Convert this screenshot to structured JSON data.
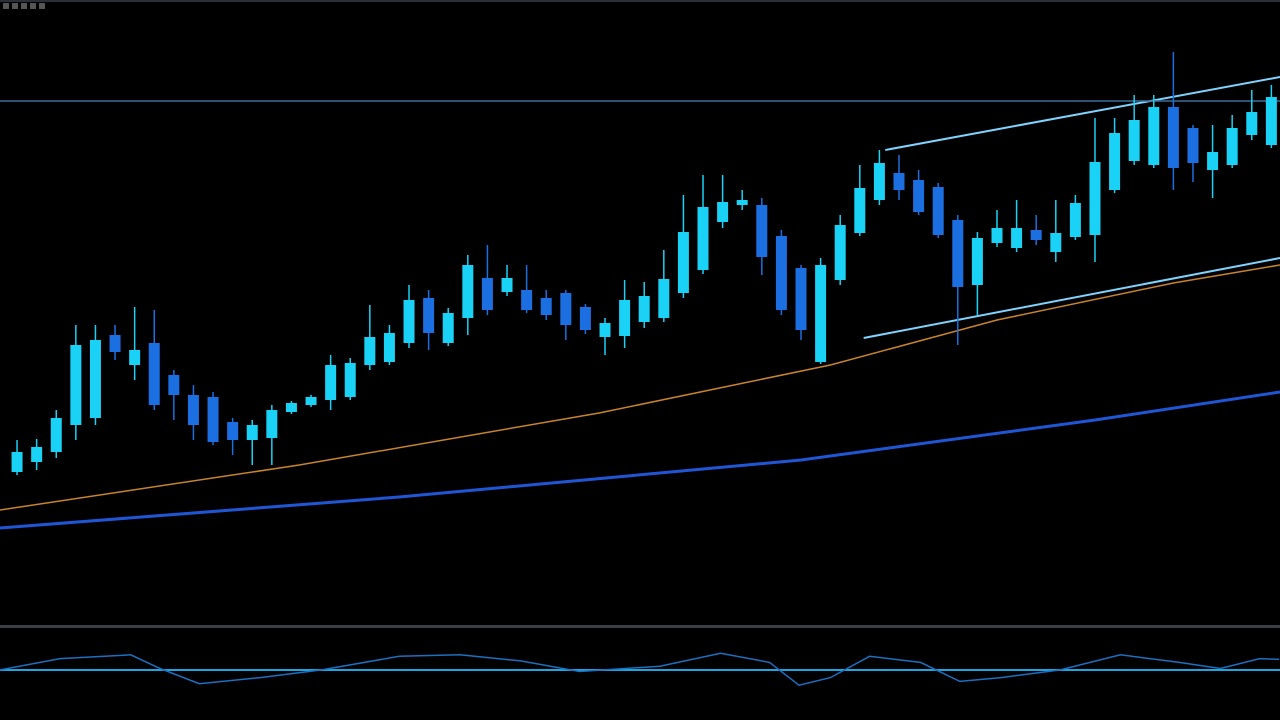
{
  "chart_data": {
    "type": "candlestick",
    "up_color": "#1ad2f5",
    "down_color": "#1c6fe0",
    "xlim": [
      -0.87,
      64.44
    ],
    "ylim": [
      0,
      625
    ],
    "open": [
      153,
      163,
      173,
      200,
      207,
      290,
      260,
      282,
      250,
      230,
      228,
      203,
      185,
      187,
      213,
      220,
      225,
      228,
      260,
      263,
      282,
      327,
      282,
      307,
      347,
      333,
      335,
      327,
      332,
      318,
      288,
      289,
      303,
      307,
      332,
      355,
      403,
      420,
      420,
      389,
      357,
      263,
      345,
      392,
      425,
      452,
      445,
      438,
      405,
      340,
      382,
      377,
      395,
      373,
      388,
      390,
      435,
      464,
      460,
      518,
      497,
      455,
      460,
      490,
      480
    ],
    "high": [
      185,
      186,
      215,
      300,
      300,
      300,
      318,
      315,
      255,
      240,
      233,
      207,
      205,
      220,
      224,
      230,
      270,
      267,
      320,
      300,
      340,
      335,
      317,
      370,
      380,
      360,
      360,
      335,
      335,
      321,
      307,
      345,
      343,
      375,
      430,
      450,
      450,
      435,
      427,
      395,
      360,
      367,
      410,
      460,
      475,
      470,
      455,
      442,
      410,
      393,
      415,
      425,
      410,
      425,
      430,
      507,
      507,
      530,
      530,
      573,
      500,
      500,
      510,
      535,
      540
    ],
    "low": [
      150,
      155,
      167,
      185,
      200,
      265,
      245,
      215,
      205,
      185,
      180,
      170,
      160,
      160,
      211,
      218,
      215,
      225,
      255,
      260,
      277,
      275,
      279,
      290,
      310,
      329,
      312,
      305,
      285,
      291,
      270,
      277,
      297,
      303,
      327,
      351,
      397,
      415,
      350,
      310,
      285,
      261,
      340,
      389,
      420,
      425,
      410,
      387,
      280,
      310,
      378,
      373,
      380,
      363,
      385,
      363,
      432,
      460,
      457,
      435,
      443,
      427,
      457,
      485,
      477
    ],
    "close": [
      173,
      178,
      207,
      280,
      285,
      273,
      275,
      220,
      230,
      200,
      183,
      185,
      200,
      215,
      222,
      228,
      260,
      262,
      288,
      292,
      325,
      292,
      312,
      360,
      315,
      347,
      315,
      310,
      300,
      295,
      302,
      325,
      329,
      346,
      393,
      418,
      423,
      425,
      368,
      315,
      295,
      360,
      400,
      437,
      462,
      435,
      413,
      390,
      338,
      387,
      397,
      397,
      385,
      392,
      422,
      463,
      492,
      505,
      518,
      457,
      462,
      473,
      497,
      513,
      528
    ],
    "overlays": [
      {
        "color": "#c8842a",
        "x": [
          -0.87,
          14.4,
          29.7,
          41.5,
          50,
          59,
          64.44
        ],
        "values": [
          115,
          160,
          212,
          260,
          305,
          342,
          360
        ]
      },
      {
        "color": "#1f56d6",
        "x": [
          -0.87,
          19.5,
          40,
          55,
          64.44
        ],
        "values": [
          97,
          128,
          165,
          205,
          233
        ]
      }
    ],
    "trendlines": [
      {
        "color": "#7fd3ff",
        "x": [
          44.3,
          64.44
        ],
        "values": [
          475,
          548
        ]
      },
      {
        "color": "#7fd3ff",
        "x": [
          43.2,
          64.44
        ],
        "values": [
          287,
          367
        ]
      },
      {
        "color": "#3a6f9a",
        "x": [
          -0.87,
          64.44
        ],
        "values": [
          524,
          524
        ]
      }
    ],
    "oscillator": {
      "color": "#1d6fc0",
      "level": 0,
      "level_color": "#1aa6e0",
      "ylim": [
        -50,
        50
      ],
      "x": [
        -0.9,
        2.2,
        5.8,
        7.3,
        9.3,
        12.4,
        15.5,
        19.5,
        22.6,
        25.7,
        28.7,
        32.8,
        35.9,
        38.4,
        39.9,
        41.5,
        43.5,
        46.1,
        48.1,
        50.2,
        53.2,
        56.3,
        59.3,
        61.4,
        63.4,
        64.4
      ],
      "values": [
        0,
        15,
        20,
        2,
        -18,
        -10,
        0,
        18,
        20,
        12,
        -2,
        5,
        22,
        10,
        -20,
        -10,
        18,
        10,
        -15,
        -10,
        0,
        20,
        10,
        2,
        15,
        14
      ]
    }
  }
}
